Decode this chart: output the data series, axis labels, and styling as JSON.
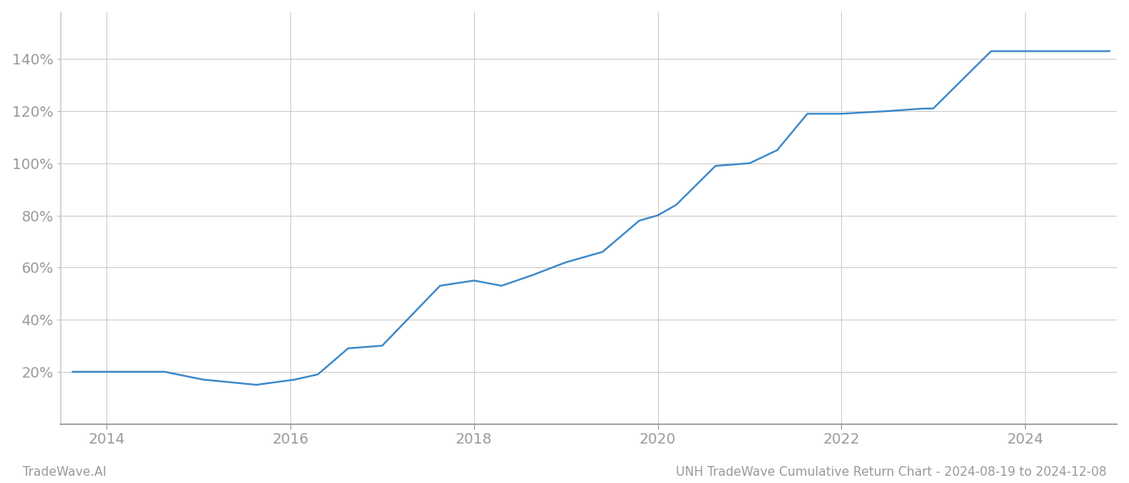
{
  "x_values": [
    2013.63,
    2014.0,
    2014.63,
    2015.05,
    2015.63,
    2016.05,
    2016.3,
    2016.63,
    2017.0,
    2017.63,
    2018.0,
    2018.3,
    2018.63,
    2019.0,
    2019.4,
    2019.8,
    2020.0,
    2020.2,
    2020.63,
    2021.0,
    2021.3,
    2021.63,
    2022.0,
    2022.5,
    2022.9,
    2023.0,
    2023.63,
    2024.0,
    2024.63,
    2024.92
  ],
  "y_values": [
    20,
    20,
    20,
    17,
    15,
    17,
    19,
    29,
    30,
    53,
    55,
    53,
    57,
    62,
    66,
    78,
    80,
    84,
    99,
    100,
    105,
    119,
    119,
    120,
    121,
    121,
    143,
    143,
    143,
    143
  ],
  "line_color": "#3a87c8",
  "line_width": 1.6,
  "background_color": "#ffffff",
  "grid_color": "#cccccc",
  "xlim": [
    2013.5,
    2025.0
  ],
  "ylim": [
    0,
    158
  ],
  "yticks": [
    20,
    40,
    60,
    80,
    100,
    120,
    140
  ],
  "xticks": [
    2014,
    2016,
    2018,
    2020,
    2022,
    2024
  ],
  "tick_label_color": "#999999",
  "footer_left": "TradeWave.AI",
  "footer_right": "UNH TradeWave Cumulative Return Chart - 2024-08-19 to 2024-12-08",
  "footer_fontsize": 11
}
